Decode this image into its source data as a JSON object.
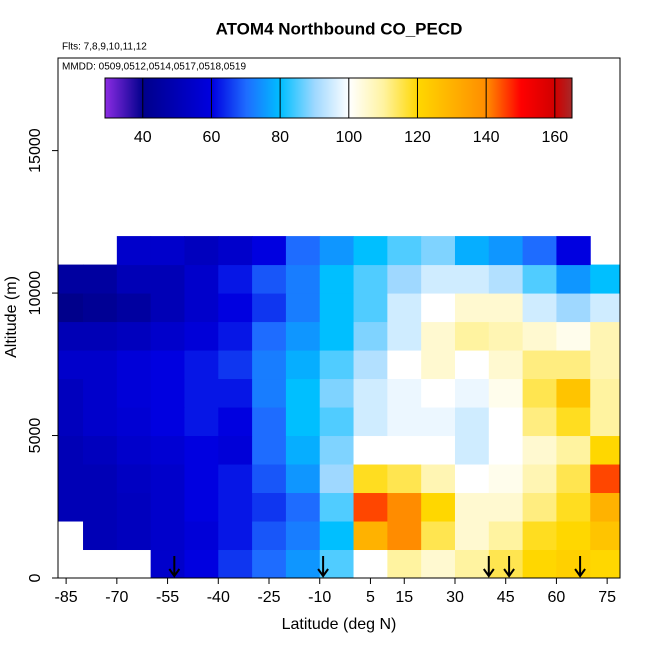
{
  "chart_data": {
    "type": "heatmap",
    "title": "ATOM4 Northbound CO_PECD",
    "subtitle": "Flts: 7,8,9,10,11,12",
    "annotation": "MMDD: 0509,0512,0514,0517,0518,0519",
    "x_label": "Latitude (deg N)",
    "y_label": "Altitude (m)",
    "xlim": [
      -87.4,
      78.8
    ],
    "ylim": [
      0,
      18250
    ],
    "xticks": [
      -85,
      -70,
      -55,
      -40,
      -25,
      -10,
      5,
      15,
      30,
      45,
      60,
      75
    ],
    "yticks": [
      0,
      5000,
      10000,
      15000
    ],
    "x_edges": [
      -90,
      -80,
      -70,
      -60,
      -50,
      -40,
      -30,
      -20,
      -10,
      0,
      10,
      20,
      30,
      40,
      50,
      60,
      70,
      80
    ],
    "y_edges": [
      0,
      1000,
      2000,
      3000,
      4000,
      5000,
      6000,
      7000,
      8000,
      9000,
      10000,
      11000,
      12000
    ],
    "values": [
      [
        null,
        null,
        null,
        55,
        60,
        65,
        70,
        75,
        85,
        100,
        110,
        105,
        110,
        115,
        120,
        122,
        120
      ],
      [
        null,
        50,
        52,
        55,
        58,
        62,
        68,
        72,
        80,
        130,
        140,
        115,
        105,
        110,
        118,
        120,
        125
      ],
      [
        50,
        50,
        52,
        55,
        60,
        62,
        65,
        70,
        85,
        145,
        140,
        120,
        105,
        105,
        112,
        118,
        130
      ],
      [
        50,
        50,
        53,
        55,
        60,
        62,
        68,
        75,
        90,
        118,
        115,
        108,
        100,
        102,
        108,
        115,
        145
      ],
      [
        50,
        52,
        55,
        57,
        60,
        58,
        70,
        78,
        88,
        100,
        100,
        100,
        95,
        100,
        105,
        110,
        120
      ],
      [
        52,
        55,
        57,
        60,
        62,
        60,
        70,
        80,
        85,
        95,
        98,
        98,
        95,
        100,
        112,
        118,
        110
      ],
      [
        52,
        55,
        58,
        60,
        62,
        62,
        72,
        80,
        88,
        95,
        98,
        100,
        98,
        102,
        115,
        125,
        110
      ],
      [
        55,
        55,
        58,
        60,
        62,
        65,
        72,
        78,
        85,
        92,
        100,
        105,
        100,
        105,
        112,
        112,
        108
      ],
      [
        50,
        50,
        52,
        55,
        58,
        62,
        70,
        75,
        80,
        88,
        95,
        105,
        110,
        108,
        105,
        102,
        108
      ],
      [
        40,
        42,
        45,
        50,
        55,
        60,
        65,
        72,
        80,
        85,
        95,
        100,
        105,
        105,
        95,
        90,
        95
      ],
      [
        45,
        45,
        50,
        50,
        55,
        62,
        68,
        72,
        80,
        85,
        90,
        95,
        95,
        92,
        85,
        75,
        80
      ],
      [
        null,
        null,
        55,
        55,
        52,
        55,
        60,
        70,
        75,
        80,
        85,
        88,
        78,
        75,
        70,
        60,
        null
      ]
    ],
    "colorbar": {
      "lim": [
        29,
        165
      ],
      "ticks": [
        40,
        60,
        80,
        100,
        120,
        140,
        160
      ]
    },
    "color_stops": [
      [
        29,
        "#8a2be2"
      ],
      [
        40,
        "#00008b"
      ],
      [
        60,
        "#0000e0"
      ],
      [
        70,
        "#1e6cff"
      ],
      [
        80,
        "#00bfff"
      ],
      [
        90,
        "#9fd8ff"
      ],
      [
        100,
        "#ffffff"
      ],
      [
        110,
        "#fff3a0"
      ],
      [
        120,
        "#ffd700"
      ],
      [
        140,
        "#ff8c00"
      ],
      [
        150,
        "#ff0000"
      ],
      [
        160,
        "#d00000"
      ],
      [
        165,
        "#a52a2a"
      ]
    ],
    "arrows": [
      -53,
      -9,
      40,
      46,
      67
    ]
  }
}
